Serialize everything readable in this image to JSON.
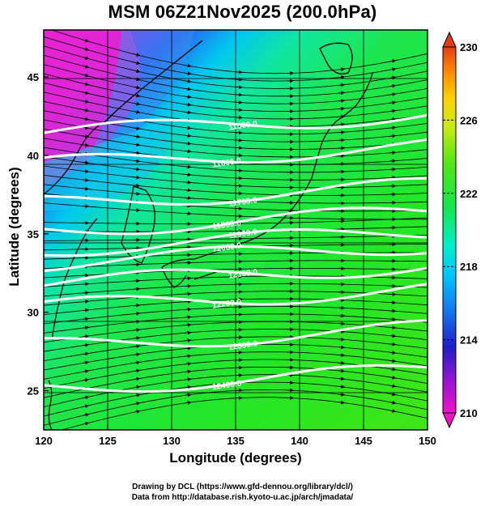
{
  "title": "MSM 06Z21Nov2025 (200.0hPa)",
  "xlabel": "Longitude (degrees)",
  "ylabel": "Latitude  (degrees)",
  "credits": {
    "line1": "Drawing by DCL (https://www.gfd-dennou.org/library/dcl/)",
    "line2": "Data from http://database.rish.kyoto-u.ac.jp/arch/jmadata/"
  },
  "map": {
    "lon_range": [
      120,
      150
    ],
    "lat_range": [
      22.5,
      48
    ],
    "x_ticks": [
      "120",
      "125",
      "130",
      "135",
      "140",
      "145",
      "150"
    ],
    "y_ticks": [
      "25",
      "30",
      "35",
      "40",
      "45"
    ],
    "grid": true
  },
  "colorbar": {
    "range": [
      210,
      230
    ],
    "labels": [
      "230",
      "226",
      "222",
      "218",
      "214",
      "210"
    ],
    "colors": [
      "#c8148c",
      "#e60ad2",
      "#2814c8",
      "#00a0ff",
      "#00ffaa",
      "#1ee61e",
      "#64e614",
      "#c8e614",
      "#ffd200",
      "#ff8c00",
      "#e63c14"
    ]
  },
  "contours": [
    {
      "label": "11500.0",
      "lat": 42.0
    },
    {
      "label": "11600.0",
      "lat": 40.0
    },
    {
      "label": "11700.0",
      "lat": 37.5
    },
    {
      "label": "11800.0",
      "lat": 35.8
    },
    {
      "label": "11900.0",
      "lat": 34.6
    },
    {
      "label": "12000.0",
      "lat": 33.7
    },
    {
      "label": "12100.0",
      "lat": 32.4
    },
    {
      "label": "12200.0",
      "lat": 30.9
    },
    {
      "label": "12300.0",
      "lat": 28.4
    },
    {
      "label": "12400.0",
      "lat": 25.7
    }
  ]
}
